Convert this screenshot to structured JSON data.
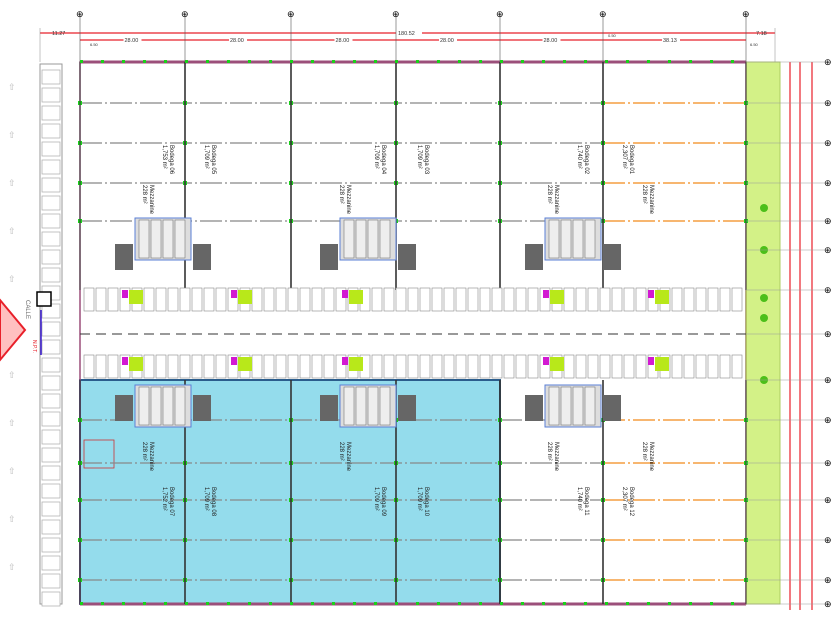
{
  "colors": {
    "dimension": "#e8202a",
    "warehouse_fill_occupied": "#94dcec",
    "warehouse_outline": "#2b5d8c",
    "wall": "#9b4f7a",
    "green_strip": "#c9ee6a",
    "gridline_orange": "#f28a1a",
    "node_green": "#19d219",
    "dock_magenta": "#d21ad2",
    "dock_lime": "#b8e81a",
    "access_marker": "#ff6b6b"
  },
  "dimensions": {
    "left_offset": "11.27",
    "total": "180.52",
    "right_offset": "7.18",
    "bays": [
      "28.00",
      "28.00",
      "28.00",
      "28.00",
      "28.00"
    ],
    "last_bay": "38.13",
    "small_left": "6.50",
    "small_right": "6.50",
    "small_mid": "0.50"
  },
  "top_warehouses": [
    {
      "name": "Bodega 06",
      "area": "1,753 m²"
    },
    {
      "name": "Bodega 05",
      "area": "1,709 m²"
    },
    {
      "name": "Bodega 04",
      "area": "1,709 m²"
    },
    {
      "name": "Bodega 03",
      "area": "1,709 m²"
    },
    {
      "name": "Bodega 02",
      "area": "1,740 m²"
    },
    {
      "name": "Bodega 01",
      "area": "2,307 m²"
    }
  ],
  "bottom_warehouses": [
    {
      "name": "Bodega 07",
      "area": "1,752 m²"
    },
    {
      "name": "Bodega 08",
      "area": "1,709 m²"
    },
    {
      "name": "Bodega 09",
      "area": "1,709 m²"
    },
    {
      "name": "Bodega 10",
      "area": "1,709 m²"
    },
    {
      "name": "Bodega 11",
      "area": "1,740 m²"
    },
    {
      "name": "Bodega 12",
      "area": "2,307 m²"
    }
  ],
  "mezzanine_label": "Mezzanine",
  "mezzanine_area": "228 m²",
  "street_label": "CALLE",
  "marker_label": "N.P.T."
}
